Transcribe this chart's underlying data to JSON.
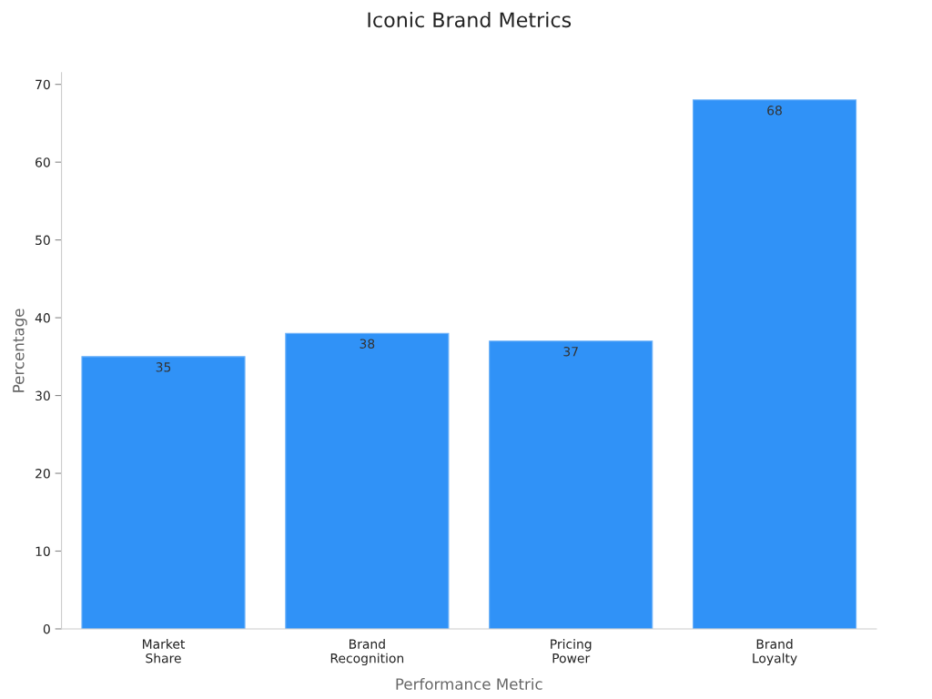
{
  "chart_data": {
    "type": "bar",
    "title": "Iconic Brand Metrics",
    "xlabel": "Performance Metric",
    "ylabel": "Percentage",
    "categories": [
      "Market\nShare",
      "Brand\nRecognition",
      "Pricing\nPower",
      "Brand\nLoyalty"
    ],
    "values": [
      35,
      38,
      37,
      68
    ],
    "color": "#3092f7",
    "ylim": [
      0,
      71.5
    ],
    "yticks": [
      0,
      10,
      20,
      30,
      40,
      50,
      60,
      70
    ],
    "grid": false,
    "data_labels": true
  }
}
